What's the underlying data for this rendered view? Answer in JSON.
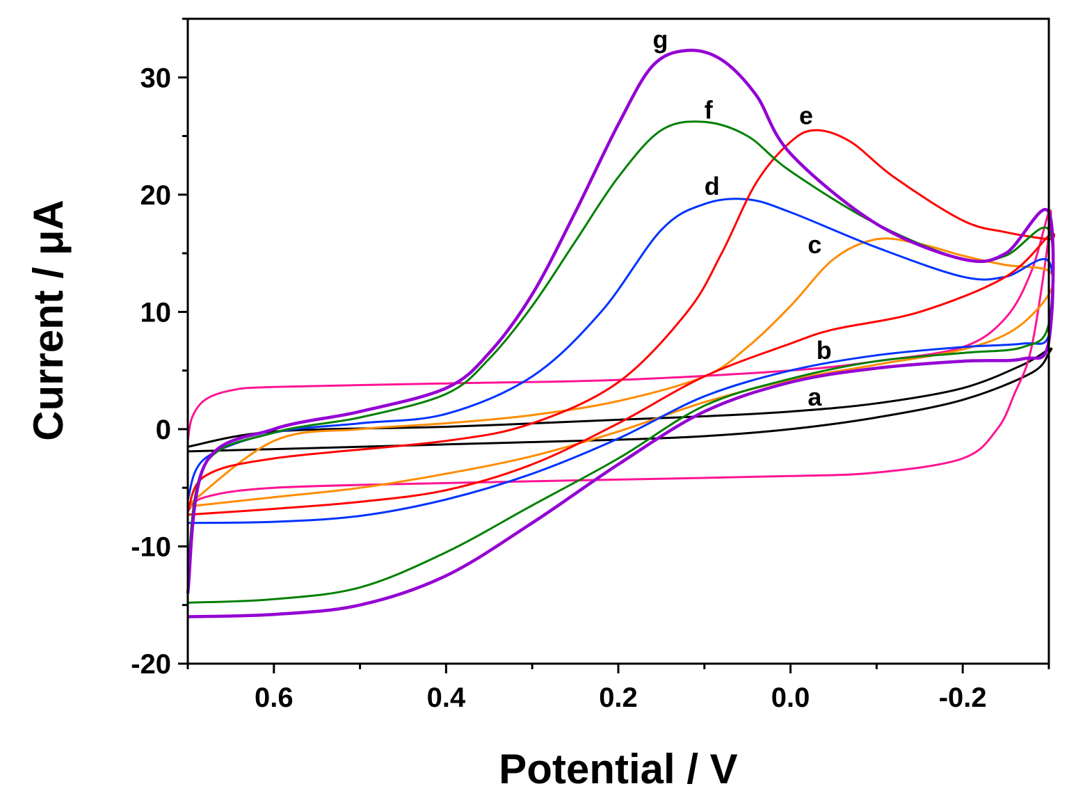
{
  "chart_data": {
    "type": "line",
    "title": "",
    "xlabel": "Potential / V",
    "ylabel": "Current / μA",
    "xlim": [
      0.7,
      -0.3
    ],
    "ylim": [
      -20,
      35
    ],
    "x_ticks": [
      0.6,
      0.4,
      0.2,
      0.0,
      -0.2
    ],
    "x_tick_labels": [
      "0.6",
      "0.4",
      "0.2",
      "0.0",
      "-0.2"
    ],
    "y_ticks": [
      -20,
      -10,
      0,
      10,
      20,
      30
    ],
    "y_tick_labels": [
      "-20",
      "-10",
      "0",
      "10",
      "20",
      "30"
    ],
    "grid": false,
    "legend": "none",
    "series": [
      {
        "name": "a",
        "color": "#000000",
        "label": {
          "x": -0.02,
          "y": 2.0
        },
        "forward": [
          [
            0.7,
            -1.5
          ],
          [
            0.6,
            -0.2
          ],
          [
            0.4,
            0.2
          ],
          [
            0.2,
            0.8
          ],
          [
            0.1,
            1.1
          ],
          [
            0.0,
            1.5
          ],
          [
            -0.1,
            2.2
          ],
          [
            -0.2,
            3.5
          ],
          [
            -0.27,
            5.5
          ],
          [
            -0.3,
            6.8
          ]
        ],
        "reverse": [
          [
            -0.3,
            6.5
          ],
          [
            -0.28,
            4.8
          ],
          [
            -0.2,
            2.5
          ],
          [
            -0.1,
            1.0
          ],
          [
            0.0,
            0.0
          ],
          [
            0.1,
            -0.6
          ],
          [
            0.2,
            -0.9
          ],
          [
            0.4,
            -1.3
          ],
          [
            0.6,
            -1.7
          ],
          [
            0.7,
            -1.9
          ]
        ]
      },
      {
        "name": "b",
        "color": "#ff1493",
        "label": {
          "x": -0.03,
          "y": 6.0
        },
        "forward": [
          [
            0.7,
            -1.0
          ],
          [
            0.695,
            1.0
          ],
          [
            0.68,
            2.5
          ],
          [
            0.65,
            3.3
          ],
          [
            0.6,
            3.6
          ],
          [
            0.4,
            3.9
          ],
          [
            0.2,
            4.2
          ],
          [
            0.0,
            5.0
          ],
          [
            -0.1,
            5.8
          ],
          [
            -0.2,
            7.0
          ],
          [
            -0.25,
            9.5
          ],
          [
            -0.28,
            13.5
          ],
          [
            -0.3,
            18.5
          ]
        ],
        "reverse": [
          [
            -0.3,
            16.5
          ],
          [
            -0.28,
            7.0
          ],
          [
            -0.26,
            3.0
          ],
          [
            -0.24,
            0.0
          ],
          [
            -0.2,
            -2.5
          ],
          [
            -0.1,
            -3.7
          ],
          [
            0.0,
            -4.0
          ],
          [
            0.2,
            -4.3
          ],
          [
            0.4,
            -4.6
          ],
          [
            0.6,
            -5.0
          ],
          [
            0.68,
            -5.8
          ],
          [
            0.7,
            -7.0
          ]
        ]
      },
      {
        "name": "c",
        "color": "#ff8c00",
        "label": {
          "x": -0.02,
          "y": 15.0
        },
        "forward": [
          [
            0.7,
            -6.5
          ],
          [
            0.6,
            -1.0
          ],
          [
            0.5,
            0.0
          ],
          [
            0.4,
            0.5
          ],
          [
            0.3,
            1.2
          ],
          [
            0.2,
            2.4
          ],
          [
            0.1,
            4.5
          ],
          [
            0.05,
            7.0
          ],
          [
            0.0,
            10.5
          ],
          [
            -0.05,
            14.5
          ],
          [
            -0.1,
            16.2
          ],
          [
            -0.15,
            15.8
          ],
          [
            -0.2,
            14.8
          ],
          [
            -0.25,
            14.0
          ],
          [
            -0.3,
            13.5
          ]
        ],
        "reverse": [
          [
            -0.3,
            11.5
          ],
          [
            -0.26,
            8.5
          ],
          [
            -0.2,
            6.8
          ],
          [
            -0.1,
            5.5
          ],
          [
            0.0,
            4.2
          ],
          [
            0.1,
            2.3
          ],
          [
            0.2,
            -0.2
          ],
          [
            0.3,
            -2.3
          ],
          [
            0.4,
            -3.8
          ],
          [
            0.5,
            -5.0
          ],
          [
            0.6,
            -5.8
          ],
          [
            0.7,
            -6.6
          ]
        ]
      },
      {
        "name": "d",
        "color": "#0033ff",
        "label": {
          "x": 0.1,
          "y": 20.0
        },
        "forward": [
          [
            0.7,
            -6.0
          ],
          [
            0.68,
            -2.5
          ],
          [
            0.6,
            -0.3
          ],
          [
            0.5,
            0.5
          ],
          [
            0.4,
            1.3
          ],
          [
            0.3,
            4.5
          ],
          [
            0.22,
            10.0
          ],
          [
            0.15,
            17.0
          ],
          [
            0.1,
            19.2
          ],
          [
            0.05,
            19.6
          ],
          [
            0.0,
            18.5
          ],
          [
            -0.1,
            15.5
          ],
          [
            -0.2,
            13.0
          ],
          [
            -0.25,
            13.0
          ],
          [
            -0.3,
            14.3
          ]
        ],
        "reverse": [
          [
            -0.3,
            8.0
          ],
          [
            -0.27,
            7.3
          ],
          [
            -0.2,
            7.0
          ],
          [
            -0.1,
            6.3
          ],
          [
            0.0,
            5.0
          ],
          [
            0.1,
            2.8
          ],
          [
            0.2,
            -0.8
          ],
          [
            0.3,
            -3.8
          ],
          [
            0.4,
            -6.0
          ],
          [
            0.5,
            -7.4
          ],
          [
            0.6,
            -7.9
          ],
          [
            0.7,
            -8.0
          ]
        ]
      },
      {
        "name": "e",
        "color": "#ff0000",
        "label": {
          "x": -0.01,
          "y": 26.0
        },
        "forward": [
          [
            0.7,
            -7.0
          ],
          [
            0.68,
            -4.0
          ],
          [
            0.6,
            -2.5
          ],
          [
            0.4,
            -1.0
          ],
          [
            0.3,
            0.5
          ],
          [
            0.2,
            4.0
          ],
          [
            0.12,
            10.0
          ],
          [
            0.08,
            15.0
          ],
          [
            0.04,
            21.0
          ],
          [
            0.0,
            24.5
          ],
          [
            -0.03,
            25.5
          ],
          [
            -0.07,
            24.5
          ],
          [
            -0.12,
            21.5
          ],
          [
            -0.2,
            17.8
          ],
          [
            -0.25,
            16.8
          ],
          [
            -0.3,
            16.2
          ]
        ],
        "reverse": [
          [
            -0.3,
            16.5
          ],
          [
            -0.25,
            13.0
          ],
          [
            -0.15,
            10.0
          ],
          [
            -0.05,
            8.5
          ],
          [
            0.0,
            7.3
          ],
          [
            0.1,
            4.5
          ],
          [
            0.2,
            0.5
          ],
          [
            0.3,
            -3.0
          ],
          [
            0.4,
            -5.2
          ],
          [
            0.5,
            -6.2
          ],
          [
            0.6,
            -6.8
          ],
          [
            0.7,
            -7.3
          ]
        ]
      },
      {
        "name": "f",
        "color": "#008000",
        "label": {
          "x": 0.1,
          "y": 26.5
        },
        "forward": [
          [
            0.7,
            -12.0
          ],
          [
            0.68,
            -3.0
          ],
          [
            0.6,
            -0.3
          ],
          [
            0.5,
            1.0
          ],
          [
            0.4,
            3.0
          ],
          [
            0.35,
            6.0
          ],
          [
            0.3,
            10.5
          ],
          [
            0.25,
            16.0
          ],
          [
            0.2,
            21.5
          ],
          [
            0.15,
            25.5
          ],
          [
            0.1,
            26.2
          ],
          [
            0.05,
            25.0
          ],
          [
            0.0,
            22.0
          ],
          [
            -0.1,
            17.5
          ],
          [
            -0.2,
            14.5
          ],
          [
            -0.25,
            14.8
          ],
          [
            -0.3,
            17.0
          ]
        ],
        "reverse": [
          [
            -0.3,
            9.0
          ],
          [
            -0.27,
            7.0
          ],
          [
            -0.2,
            6.5
          ],
          [
            -0.1,
            5.8
          ],
          [
            0.0,
            4.3
          ],
          [
            0.1,
            2.0
          ],
          [
            0.2,
            -2.5
          ],
          [
            0.3,
            -6.5
          ],
          [
            0.4,
            -10.5
          ],
          [
            0.5,
            -13.5
          ],
          [
            0.6,
            -14.5
          ],
          [
            0.7,
            -14.8
          ]
        ]
      },
      {
        "name": "g",
        "color": "#9400d3",
        "label": {
          "x": 0.16,
          "y": 32.5
        },
        "forward": [
          [
            0.7,
            -14.0
          ],
          [
            0.68,
            -3.0
          ],
          [
            0.6,
            0.0
          ],
          [
            0.5,
            1.5
          ],
          [
            0.4,
            3.5
          ],
          [
            0.35,
            6.5
          ],
          [
            0.3,
            11.5
          ],
          [
            0.25,
            18.5
          ],
          [
            0.2,
            26.0
          ],
          [
            0.16,
            31.0
          ],
          [
            0.12,
            32.3
          ],
          [
            0.08,
            31.5
          ],
          [
            0.04,
            28.5
          ],
          [
            0.0,
            23.5
          ],
          [
            -0.1,
            17.5
          ],
          [
            -0.2,
            14.5
          ],
          [
            -0.25,
            15.0
          ],
          [
            -0.3,
            18.5
          ]
        ],
        "reverse": [
          [
            -0.3,
            7.5
          ],
          [
            -0.27,
            6.0
          ],
          [
            -0.2,
            5.8
          ],
          [
            -0.1,
            5.2
          ],
          [
            0.0,
            4.0
          ],
          [
            0.1,
            1.5
          ],
          [
            0.2,
            -3.0
          ],
          [
            0.3,
            -8.0
          ],
          [
            0.4,
            -12.5
          ],
          [
            0.5,
            -15.0
          ],
          [
            0.6,
            -15.8
          ],
          [
            0.7,
            -16.0
          ]
        ]
      }
    ]
  }
}
